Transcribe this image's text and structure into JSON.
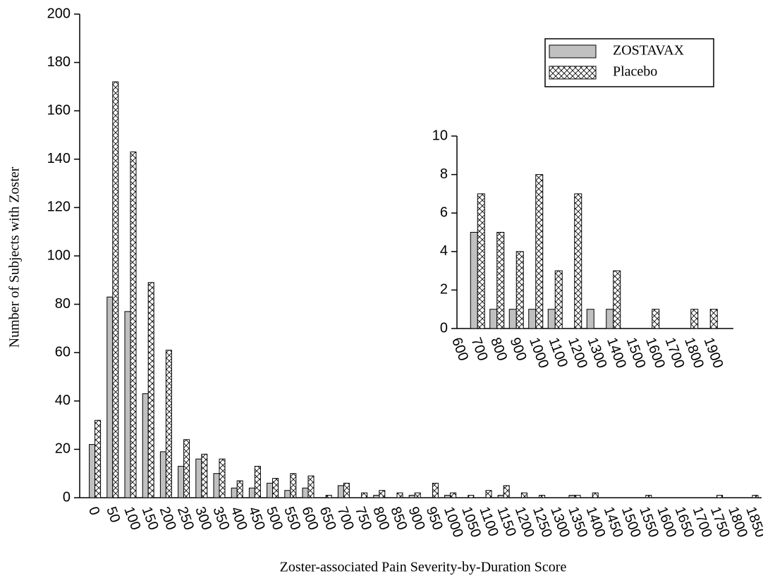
{
  "chart_data": [
    {
      "type": "bar",
      "x_label": "Zoster-associated Pain Severity-by-Duration Score",
      "y_label": "Number of Subjects with Zoster",
      "categories": [
        "0",
        "50",
        "100",
        "150",
        "200",
        "250",
        "300",
        "350",
        "400",
        "450",
        "500",
        "550",
        "600",
        "650",
        "700",
        "750",
        "800",
        "850",
        "900",
        "950",
        "1000",
        "1050",
        "1100",
        "1150",
        "1200",
        "1250",
        "1300",
        "1350",
        "1400",
        "1450",
        "1500",
        "1550",
        "1600",
        "1650",
        "1700",
        "1750",
        "1800",
        "1850"
      ],
      "series": [
        {
          "name": "ZOSTAVAX",
          "color": "#c0c0c0",
          "pattern": "solid",
          "values": [
            22,
            83,
            77,
            43,
            19,
            13,
            16,
            10,
            4,
            4,
            6,
            3,
            4,
            0,
            5,
            0,
            1,
            0,
            1,
            0,
            1,
            0,
            0,
            1,
            0,
            0,
            0,
            1,
            0,
            0,
            0,
            0,
            0,
            0,
            0,
            0,
            0,
            0
          ]
        },
        {
          "name": "Placebo",
          "color": "#ffffff",
          "pattern": "crosshatch",
          "values": [
            32,
            172,
            143,
            89,
            61,
            24,
            18,
            16,
            7,
            13,
            8,
            10,
            9,
            1,
            6,
            2,
            3,
            2,
            2,
            6,
            2,
            1,
            3,
            5,
            2,
            1,
            0,
            1,
            2,
            0,
            0,
            1,
            0,
            0,
            0,
            1,
            0,
            1
          ]
        }
      ],
      "ylim": [
        0,
        200
      ],
      "yticks": [
        0,
        20,
        40,
        60,
        80,
        100,
        120,
        140,
        160,
        180,
        200
      ],
      "legend": "top-right"
    },
    {
      "type": "bar",
      "categories": [
        "600",
        "700",
        "800",
        "900",
        "1000",
        "1100",
        "1200",
        "1300",
        "1400",
        "1500",
        "1600",
        "1700",
        "1800",
        "1900"
      ],
      "series": [
        {
          "color": "#c0c0c0",
          "pattern": "solid",
          "values": [
            0,
            5,
            1,
            1,
            1,
            1,
            0,
            1,
            1,
            0,
            0,
            0,
            0,
            0
          ]
        },
        {
          "color": "#ffffff",
          "pattern": "crosshatch",
          "values": [
            0,
            7,
            5,
            4,
            8,
            3,
            7,
            0,
            3,
            0,
            1,
            0,
            1,
            1
          ]
        }
      ],
      "ylim": [
        0,
        10
      ],
      "yticks": [
        0,
        2,
        4,
        6,
        8,
        10
      ]
    }
  ]
}
